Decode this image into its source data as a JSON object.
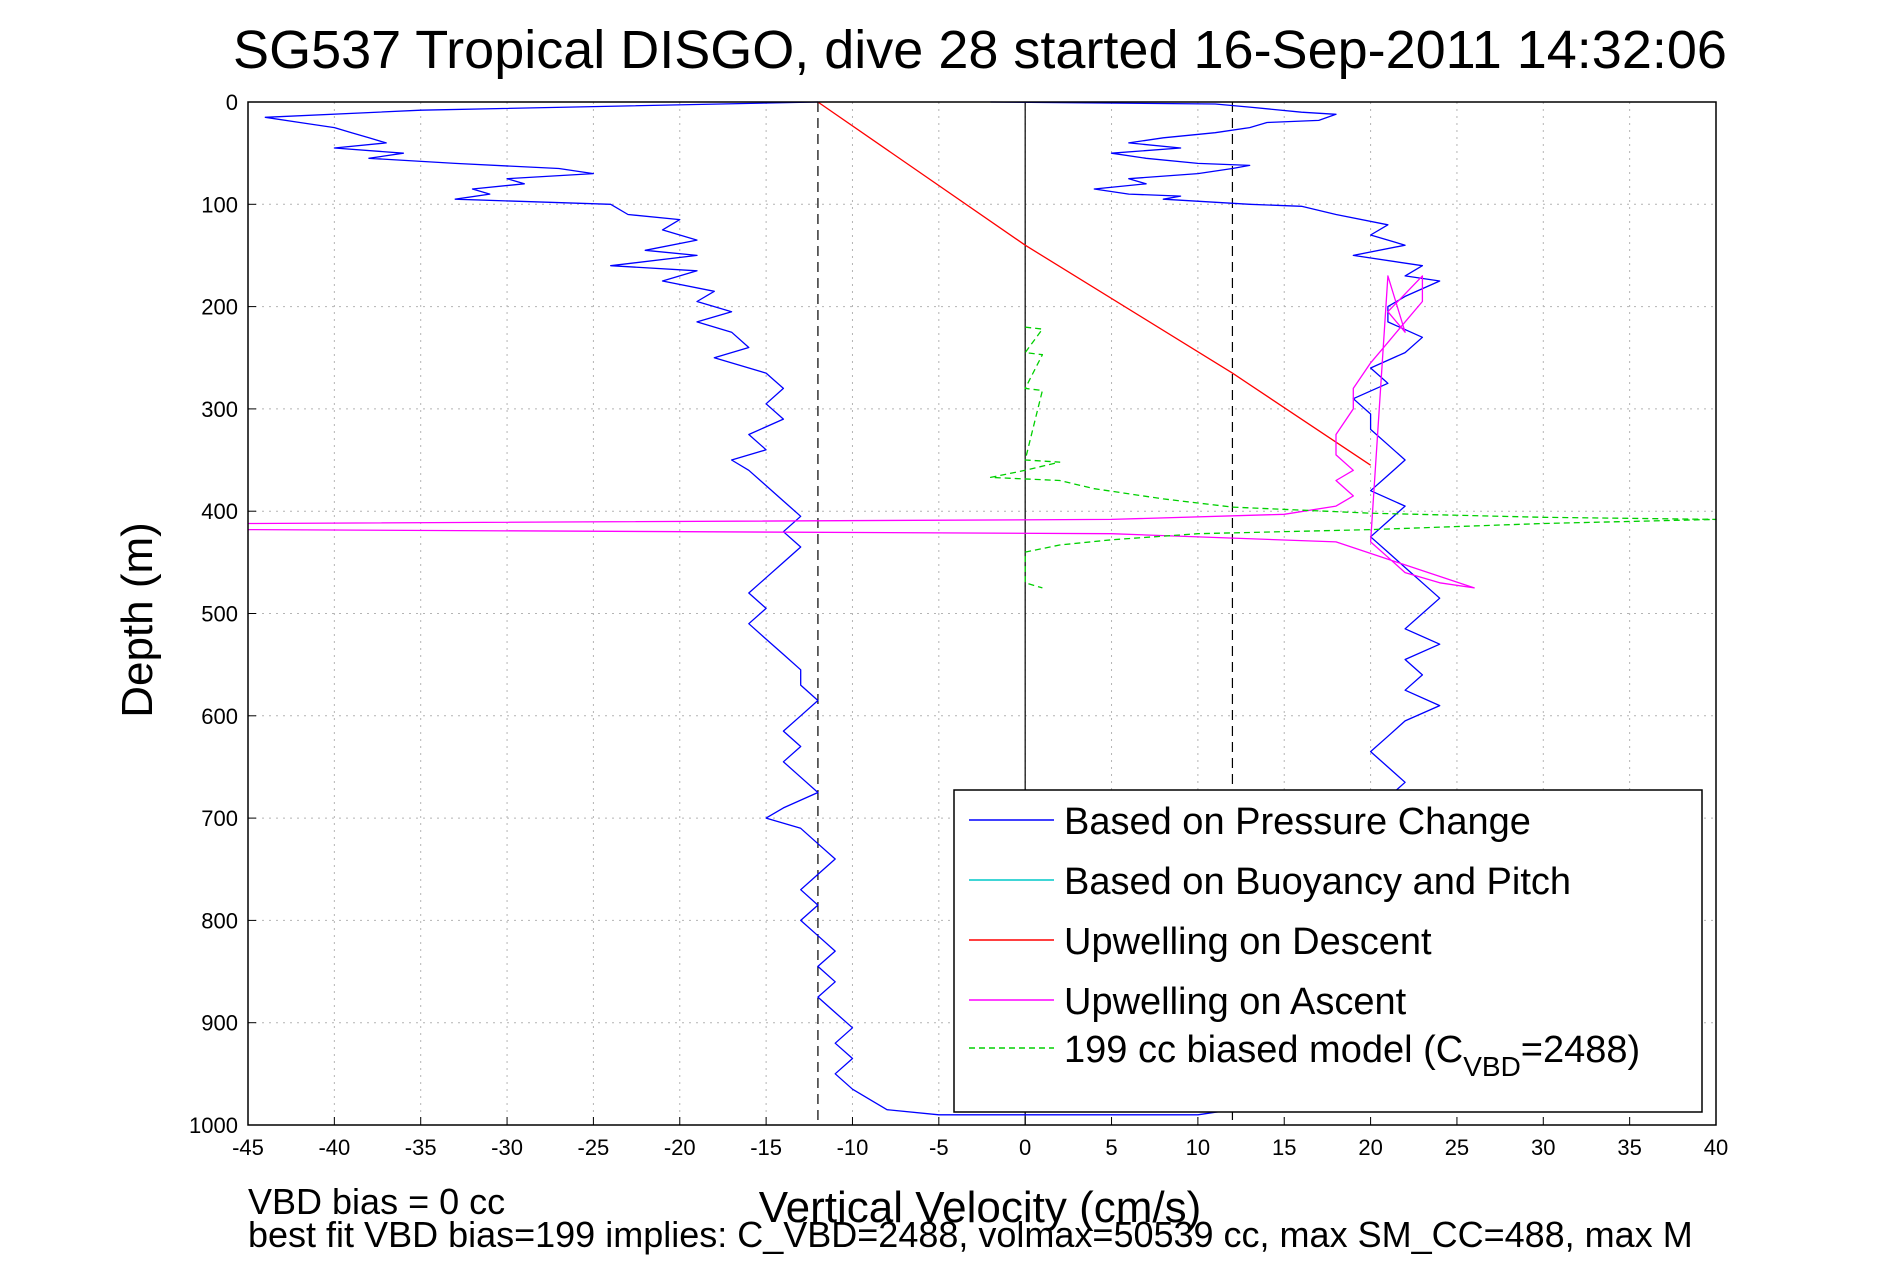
{
  "chart_data": {
    "type": "line",
    "title": "SG537 Tropical DISGO, dive 28 started 16-Sep-2011 14:32:06",
    "xlabel": "Vertical Velocity (cm/s)",
    "ylabel": "Depth (m)",
    "xlim": [
      -45,
      40
    ],
    "ylim": [
      0,
      1000
    ],
    "y_reversed": true,
    "grid": true,
    "legend_position": "bottom-right",
    "xticks": [
      "-45",
      "-40",
      "-35",
      "-30",
      "-25",
      "-20",
      "-15",
      "-10",
      "-5",
      "0",
      "5",
      "10",
      "15",
      "20",
      "25",
      "30",
      "35",
      "40"
    ],
    "yticks": [
      "0",
      "100",
      "200",
      "300",
      "400",
      "500",
      "600",
      "700",
      "800",
      "900",
      "1000"
    ],
    "vlines": [
      -12,
      0,
      12
    ],
    "series": [
      {
        "name": "Based on Pressure Change",
        "color": "#0000ff",
        "style": "solid",
        "points": [
          [
            -12.0,
            0
          ],
          [
            -35,
            8
          ],
          [
            -44,
            15
          ],
          [
            -42,
            20
          ],
          [
            -40,
            25
          ],
          [
            -39,
            30
          ],
          [
            -38,
            35
          ],
          [
            -37,
            40
          ],
          [
            -40,
            45
          ],
          [
            -36,
            50
          ],
          [
            -38,
            55
          ],
          [
            -33,
            60
          ],
          [
            -27,
            65
          ],
          [
            -25,
            70
          ],
          [
            -30,
            75
          ],
          [
            -29,
            80
          ],
          [
            -32,
            85
          ],
          [
            -31,
            90
          ],
          [
            -33,
            95
          ],
          [
            -24,
            100
          ],
          [
            -23,
            110
          ],
          [
            -20,
            115
          ],
          [
            -21,
            125
          ],
          [
            -19,
            135
          ],
          [
            -22,
            145
          ],
          [
            -19,
            150
          ],
          [
            -24,
            160
          ],
          [
            -19,
            165
          ],
          [
            -21,
            175
          ],
          [
            -18,
            185
          ],
          [
            -19,
            195
          ],
          [
            -17,
            205
          ],
          [
            -19,
            215
          ],
          [
            -17,
            225
          ],
          [
            -16,
            240
          ],
          [
            -18,
            250
          ],
          [
            -15,
            265
          ],
          [
            -14,
            280
          ],
          [
            -15,
            295
          ],
          [
            -14,
            310
          ],
          [
            -16,
            325
          ],
          [
            -15,
            340
          ],
          [
            -17,
            350
          ],
          [
            -16,
            360
          ],
          [
            -15,
            375
          ],
          [
            -14,
            390
          ],
          [
            -13,
            405
          ],
          [
            -14,
            420
          ],
          [
            -13,
            435
          ],
          [
            -14,
            450
          ],
          [
            -15,
            465
          ],
          [
            -16,
            480
          ],
          [
            -15,
            495
          ],
          [
            -16,
            510
          ],
          [
            -15,
            525
          ],
          [
            -14,
            540
          ],
          [
            -13,
            555
          ],
          [
            -13,
            570
          ],
          [
            -12,
            585
          ],
          [
            -13,
            600
          ],
          [
            -14,
            615
          ],
          [
            -13,
            630
          ],
          [
            -14,
            645
          ],
          [
            -13,
            660
          ],
          [
            -12,
            675
          ],
          [
            -14,
            690
          ],
          [
            -15,
            700
          ],
          [
            -13,
            710
          ],
          [
            -12,
            725
          ],
          [
            -11,
            740
          ],
          [
            -12,
            755
          ],
          [
            -13,
            770
          ],
          [
            -12,
            785
          ],
          [
            -13,
            800
          ],
          [
            -12,
            815
          ],
          [
            -11,
            830
          ],
          [
            -12,
            845
          ],
          [
            -11,
            860
          ],
          [
            -12,
            875
          ],
          [
            -11,
            890
          ],
          [
            -10,
            905
          ],
          [
            -11,
            920
          ],
          [
            -10,
            935
          ],
          [
            -11,
            950
          ],
          [
            -10,
            965
          ],
          [
            -9,
            975
          ],
          [
            -8,
            985
          ],
          [
            -5,
            990
          ],
          [
            10,
            990
          ],
          [
            12,
            985
          ]
        ]
      },
      {
        "name": "Based on Pressure Change",
        "color": "#0000ff",
        "style": "solid",
        "legend": false,
        "points": [
          [
            -2,
            0
          ],
          [
            11,
            2
          ],
          [
            13,
            5
          ],
          [
            16,
            10
          ],
          [
            18,
            12
          ],
          [
            17,
            18
          ],
          [
            14,
            20
          ],
          [
            13,
            25
          ],
          [
            11,
            30
          ],
          [
            8,
            35
          ],
          [
            6,
            40
          ],
          [
            9,
            45
          ],
          [
            5,
            50
          ],
          [
            7,
            55
          ],
          [
            10,
            60
          ],
          [
            13,
            62
          ],
          [
            12,
            65
          ],
          [
            10,
            70
          ],
          [
            6,
            75
          ],
          [
            7,
            80
          ],
          [
            4,
            85
          ],
          [
            6,
            90
          ],
          [
            9,
            92
          ],
          [
            8,
            95
          ],
          [
            13,
            100
          ],
          [
            16,
            102
          ],
          [
            18,
            110
          ],
          [
            21,
            120
          ],
          [
            20,
            130
          ],
          [
            22,
            140
          ],
          [
            19,
            150
          ],
          [
            23,
            160
          ],
          [
            22,
            170
          ],
          [
            24,
            175
          ],
          [
            22,
            190
          ],
          [
            21,
            200
          ],
          [
            21,
            215
          ],
          [
            23,
            230
          ],
          [
            22,
            245
          ],
          [
            20,
            260
          ],
          [
            21,
            275
          ],
          [
            19,
            290
          ],
          [
            20,
            305
          ],
          [
            20,
            320
          ],
          [
            21,
            335
          ],
          [
            22,
            350
          ],
          [
            21,
            365
          ],
          [
            20,
            380
          ],
          [
            22,
            395
          ],
          [
            21,
            410
          ],
          [
            20,
            425
          ],
          [
            21,
            440
          ],
          [
            22,
            455
          ],
          [
            23,
            470
          ],
          [
            24,
            485
          ],
          [
            23,
            500
          ],
          [
            22,
            515
          ],
          [
            24,
            530
          ],
          [
            22,
            545
          ],
          [
            23,
            560
          ],
          [
            22,
            575
          ],
          [
            24,
            590
          ],
          [
            22,
            605
          ],
          [
            21,
            620
          ],
          [
            20,
            635
          ],
          [
            21,
            650
          ],
          [
            22,
            665
          ],
          [
            21,
            680
          ]
        ]
      },
      {
        "name": "Based on Buoyancy and Pitch",
        "color": "#00c8c8",
        "style": "solid",
        "points": []
      },
      {
        "name": "Upwelling on Descent",
        "color": "#ff0000",
        "style": "solid",
        "points": [
          [
            -12,
            0
          ],
          [
            0,
            140
          ],
          [
            12,
            265
          ],
          [
            20,
            355
          ]
        ]
      },
      {
        "name": "Upwelling on Ascent",
        "color": "#ff00ff",
        "style": "solid",
        "points": [
          [
            -45,
            412
          ],
          [
            5,
            408
          ],
          [
            15,
            403
          ],
          [
            18,
            395
          ],
          [
            19,
            385
          ],
          [
            18,
            370
          ],
          [
            19,
            360
          ],
          [
            18,
            345
          ],
          [
            18,
            325
          ],
          [
            19,
            300
          ],
          [
            19,
            280
          ],
          [
            20,
            255
          ],
          [
            21,
            235
          ],
          [
            22,
            215
          ],
          [
            23,
            195
          ],
          [
            23,
            170
          ],
          [
            21,
            205
          ],
          [
            22,
            225
          ],
          [
            21,
            170
          ],
          [
            20,
            430
          ],
          [
            21,
            445
          ],
          [
            22,
            460
          ],
          [
            24,
            470
          ],
          [
            26,
            475
          ],
          [
            18,
            430
          ],
          [
            5,
            422
          ],
          [
            -45,
            418
          ]
        ]
      },
      {
        "name": "199 cc biased model (C_VBD=2488)",
        "color": "#00d000",
        "style": "dashed",
        "points": [
          [
            0,
            220
          ],
          [
            1,
            222
          ],
          [
            0,
            245
          ],
          [
            1,
            247
          ],
          [
            0,
            280
          ],
          [
            1,
            282
          ],
          [
            0,
            350
          ],
          [
            2,
            352
          ],
          [
            0,
            360
          ],
          [
            -2,
            367
          ],
          [
            2,
            370
          ],
          [
            4,
            378
          ],
          [
            8,
            388
          ],
          [
            12,
            396
          ],
          [
            20,
            402
          ],
          [
            30,
            406
          ],
          [
            40,
            408
          ],
          [
            30,
            412
          ],
          [
            20,
            418
          ],
          [
            10,
            422
          ],
          [
            5,
            428
          ],
          [
            2,
            433
          ],
          [
            0,
            440
          ],
          [
            0,
            470
          ],
          [
            1,
            475
          ]
        ]
      }
    ],
    "legend": [
      {
        "label": "Based on Pressure Change",
        "color": "#0000ff",
        "style": "solid"
      },
      {
        "label": "Based on Buoyancy and Pitch",
        "color": "#00c8c8",
        "style": "solid"
      },
      {
        "label": "Upwelling on Descent",
        "color": "#ff0000",
        "style": "solid"
      },
      {
        "label": "Upwelling on Ascent",
        "color": "#ff00ff",
        "style": "solid"
      },
      {
        "label": "199 cc biased model (C",
        "sub": "VBD",
        "suffix": "=2488)",
        "color": "#00d000",
        "style": "dashed"
      }
    ],
    "annotations": {
      "vbd_bias": "VBD bias = 0 cc",
      "best_fit": "best fit VBD bias=199 implies: C_VBD=2488, volmax=50539 cc, max SM_CC=488, max M"
    }
  }
}
